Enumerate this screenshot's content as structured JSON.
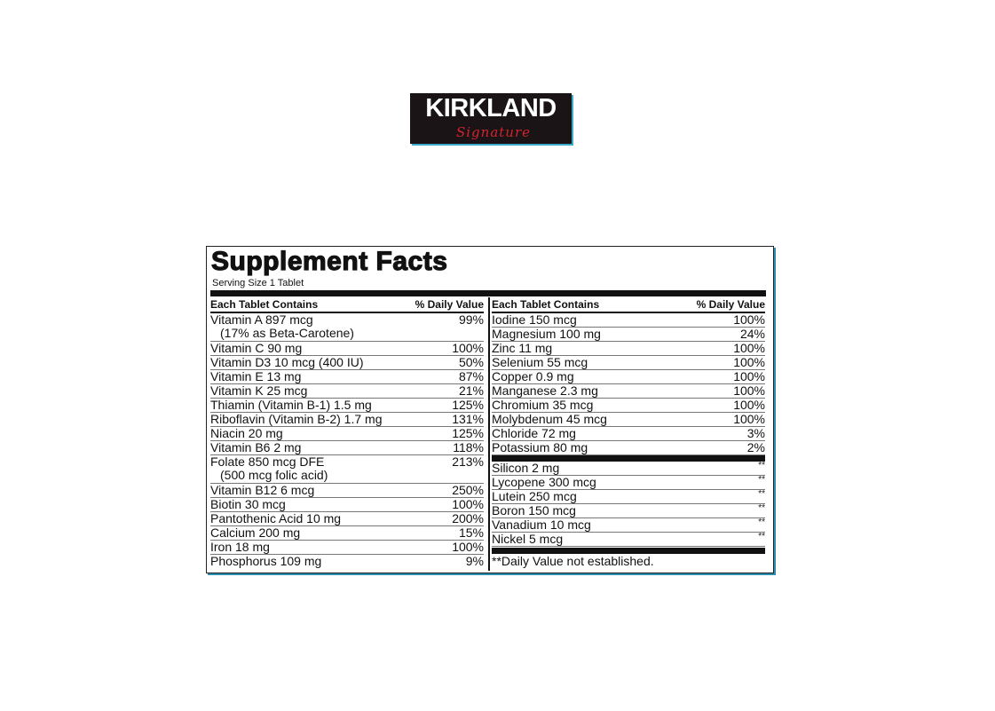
{
  "logo": {
    "brand": "KIRKLAND",
    "signature": "Signature"
  },
  "panel": {
    "title": "Supplement Facts",
    "serving_size": "Serving Size 1 Tablet",
    "header": {
      "contains": "Each Tablet Contains",
      "dv": "% Daily Value"
    },
    "left_rows": [
      {
        "name": "Vitamin A 897 mcg",
        "sub": "(17% as Beta-Carotene)",
        "dv": "99%"
      },
      {
        "name": "Vitamin C 90 mg",
        "dv": "100%"
      },
      {
        "name": "Vitamin D3 10 mcg (400 IU)",
        "dv": "50%"
      },
      {
        "name": "Vitamin E 13 mg",
        "dv": "87%"
      },
      {
        "name": "Vitamin K 25 mcg",
        "dv": "21%"
      },
      {
        "name": "Thiamin (Vitamin B-1) 1.5 mg",
        "dv": "125%"
      },
      {
        "name": "Riboflavin (Vitamin B-2) 1.7 mg",
        "dv": "131%"
      },
      {
        "name": "Niacin 20 mg",
        "dv": "125%"
      },
      {
        "name": "Vitamin B6 2 mg",
        "dv": "118%"
      },
      {
        "name": "Folate 850 mcg DFE",
        "sub": "(500 mcg folic acid)",
        "dv": "213%"
      },
      {
        "name": "Vitamin B12 6 mcg",
        "dv": "250%"
      },
      {
        "name": "Biotin 30 mcg",
        "dv": "100%"
      },
      {
        "name": "Pantothenic Acid 10 mg",
        "dv": "200%"
      },
      {
        "name": "Calcium 200 mg",
        "dv": "15%"
      },
      {
        "name": "Iron 18 mg",
        "dv": "100%"
      },
      {
        "name": "Phosphorus 109 mg",
        "dv": "9%"
      }
    ],
    "right_rows": [
      {
        "name": "Iodine 150 mcg",
        "dv": "100%"
      },
      {
        "name": "Magnesium 100 mg",
        "dv": "24%"
      },
      {
        "name": "Zinc 11 mg",
        "dv": "100%"
      },
      {
        "name": "Selenium 55 mcg",
        "dv": "100%"
      },
      {
        "name": "Copper 0.9 mg",
        "dv": "100%"
      },
      {
        "name": "Manganese 2.3 mg",
        "dv": "100%"
      },
      {
        "name": "Chromium 35 mcg",
        "dv": "100%"
      },
      {
        "name": "Molybdenum 45 mcg",
        "dv": "100%"
      },
      {
        "name": "Chloride 72 mg",
        "dv": "3%"
      },
      {
        "name": "Potassium 80 mg",
        "dv": "2%"
      }
    ],
    "right_rows_nodv": [
      {
        "name": "Silicon 2 mg",
        "dv": "**"
      },
      {
        "name": "Lycopene 300 mcg",
        "dv": "**"
      },
      {
        "name": "Lutein 250 mcg",
        "dv": "**"
      },
      {
        "name": "Boron 150 mcg",
        "dv": "**"
      },
      {
        "name": "Vanadium 10 mcg",
        "dv": "**"
      },
      {
        "name": "Nickel 5 mcg",
        "dv": "**"
      }
    ],
    "footnote": "**Daily Value not established."
  }
}
